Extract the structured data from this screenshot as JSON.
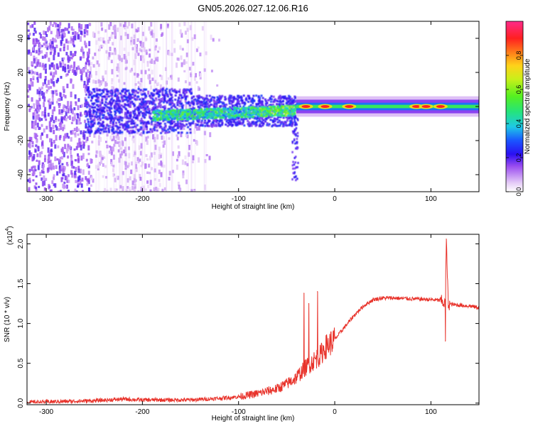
{
  "title": "GN05.2026.027.12.06.R16",
  "chart_data": [
    {
      "type": "heatmap",
      "title": "GN05.2026.027.12.06.R16",
      "xlabel": "Height of straight line (km)",
      "ylabel": "Frequency (Hz)",
      "xlim": [
        -320,
        150
      ],
      "ylim": [
        -50,
        50
      ],
      "xticks": [
        -300,
        -200,
        -100,
        0,
        100
      ],
      "xtick_labels": [
        "-300",
        "-200",
        "-100",
        "0",
        "100"
      ],
      "yticks": [
        -40,
        -20,
        0,
        20,
        40
      ],
      "ytick_labels": [
        "-40",
        "-20",
        "0",
        "20",
        "40"
      ],
      "colorbar": {
        "label": "Normalized spectral amplitude",
        "range": [
          0,
          1
        ],
        "ticks": [
          0.0,
          0.2,
          0.4,
          0.6,
          0.8
        ],
        "tick_labels": [
          "0.0",
          "0.2",
          "0.4",
          "0.6",
          "0.8"
        ]
      },
      "grid": false,
      "description_of_field": {
        "noise_region": [
          -320,
          -130
        ],
        "band_center_hz": 0,
        "strong_band_start_km": -40,
        "hot_spots_km": [
          -30,
          -10,
          15,
          85,
          95,
          110
        ]
      }
    },
    {
      "type": "line",
      "xlabel": "Height of straight line (km)",
      "ylabel": "SNR (10 * v/v)",
      "y_multiplier_label": "(x10",
      "y_multiplier_exp": "4",
      "xlim": [
        -320,
        150
      ],
      "ylim": [
        -0.02,
        2.12
      ],
      "xticks": [
        -300,
        -200,
        -100,
        0,
        100
      ],
      "xtick_labels": [
        "-300",
        "-200",
        "-100",
        "0",
        "100"
      ],
      "yticks": [
        0.0,
        0.5,
        1.0,
        1.5,
        2.0
      ],
      "ytick_labels": [
        "0.0",
        "0.5",
        "1.0",
        "1.5",
        "2.0"
      ],
      "grid": false,
      "series": [
        {
          "color": "#e8322a",
          "x": [
            -320,
            -250,
            -220,
            -200,
            -150,
            -120,
            -100,
            -80,
            -60,
            -50,
            -40,
            -30,
            -25,
            -20,
            -15,
            -10,
            -5,
            0,
            10,
            20,
            30,
            40,
            50,
            60,
            80,
            100,
            110,
            112,
            115,
            116,
            118,
            120,
            130,
            140,
            150
          ],
          "y": [
            0.01,
            0.03,
            0.05,
            0.04,
            0.04,
            0.06,
            0.08,
            0.12,
            0.18,
            0.24,
            0.32,
            0.45,
            0.5,
            0.55,
            0.6,
            0.7,
            0.75,
            0.8,
            0.95,
            1.1,
            1.22,
            1.3,
            1.32,
            1.32,
            1.31,
            1.3,
            1.29,
            1.27,
            1.25,
            2.05,
            1.25,
            1.24,
            1.23,
            1.22,
            1.2
          ],
          "spikes": [
            {
              "x": -32,
              "y": 1.38
            },
            {
              "x": -27,
              "y": 1.25
            },
            {
              "x": -18,
              "y": 1.4
            },
            {
              "x": 115,
              "y": 0.78
            },
            {
              "x": 116,
              "y": 2.06
            }
          ]
        }
      ]
    }
  ]
}
